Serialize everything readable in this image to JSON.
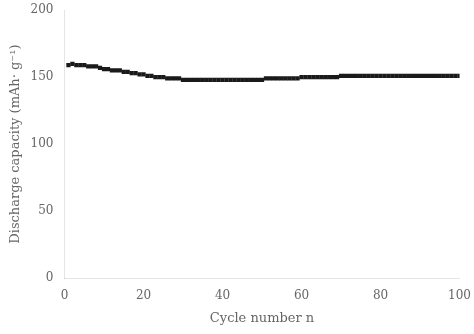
{
  "chart_data": {
    "type": "scatter",
    "xlabel": "Cycle number n",
    "ylabel": "Discharge capacity (mAh· g⁻¹)",
    "x": [
      1,
      2,
      3,
      4,
      5,
      6,
      7,
      8,
      9,
      10,
      11,
      12,
      13,
      14,
      15,
      16,
      17,
      18,
      19,
      20,
      21,
      22,
      23,
      24,
      25,
      26,
      27,
      28,
      29,
      30,
      31,
      32,
      33,
      34,
      35,
      36,
      37,
      38,
      39,
      40,
      41,
      42,
      43,
      44,
      45,
      46,
      47,
      48,
      49,
      50,
      51,
      52,
      53,
      54,
      55,
      56,
      57,
      58,
      59,
      60,
      61,
      62,
      63,
      64,
      65,
      66,
      67,
      68,
      69,
      70,
      71,
      72,
      73,
      74,
      75,
      76,
      77,
      78,
      79,
      80,
      81,
      82,
      83,
      84,
      85,
      86,
      87,
      88,
      89,
      90,
      91,
      92,
      93,
      94,
      95,
      96,
      97,
      98,
      99,
      100
    ],
    "values": [
      159,
      160,
      159,
      159,
      159,
      158,
      158,
      158,
      157,
      156,
      156,
      155,
      155,
      155,
      154,
      154,
      153,
      153,
      152,
      152,
      151,
      151,
      150,
      150,
      150,
      149,
      149,
      149,
      149,
      148,
      148,
      148,
      148,
      148,
      148,
      148,
      148,
      148,
      148,
      148,
      148,
      148,
      148,
      148,
      148,
      148,
      148,
      148,
      148,
      148,
      149,
      149,
      149,
      149,
      149,
      149,
      149,
      149,
      149,
      150,
      150,
      150,
      150,
      150,
      150,
      150,
      150,
      150,
      150,
      151,
      151,
      151,
      151,
      151,
      151,
      151,
      151,
      151,
      151,
      151,
      151,
      151,
      151,
      151,
      151,
      151,
      151,
      151,
      151,
      151,
      151,
      151,
      151,
      151,
      151,
      151,
      151,
      151,
      151,
      151
    ],
    "color": "#1a1a1a",
    "marker": "square",
    "xlim": [
      0,
      100
    ],
    "ylim": [
      0,
      200
    ],
    "xticks": [
      0,
      20,
      40,
      60,
      80,
      100
    ],
    "yticks": [
      0,
      50,
      100,
      150,
      200
    ],
    "grid": false
  }
}
